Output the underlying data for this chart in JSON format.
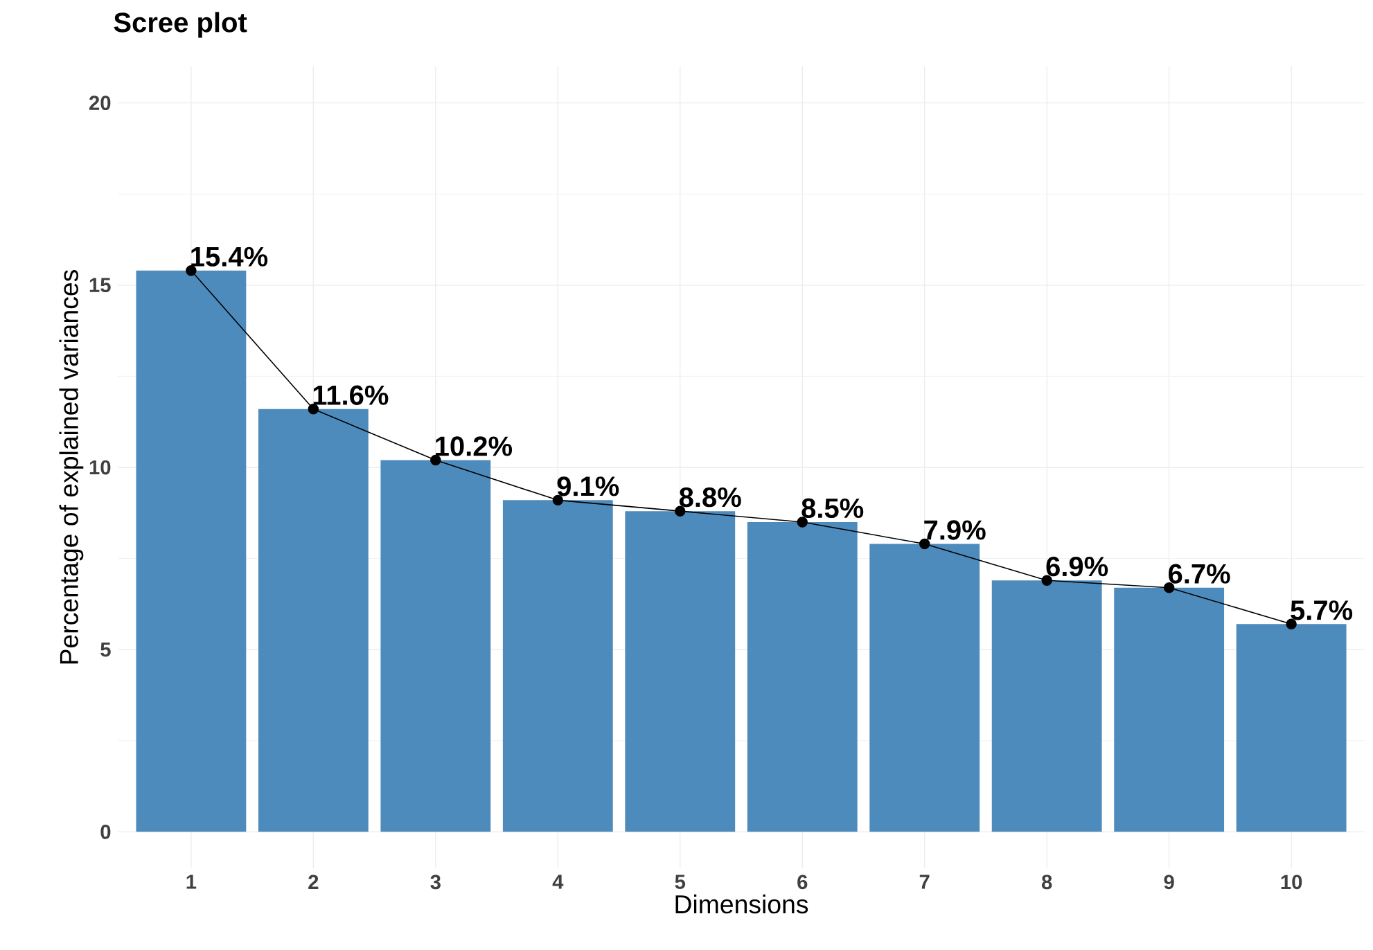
{
  "chart_data": {
    "type": "bar",
    "title": "Scree plot",
    "xlabel": "Dimensions",
    "ylabel": "Percentage of explained variances",
    "categories": [
      "1",
      "2",
      "3",
      "4",
      "5",
      "6",
      "7",
      "8",
      "9",
      "10"
    ],
    "series": [
      {
        "color": "#4e8bbd",
        "values": [
          15.4,
          11.6,
          10.2,
          9.1,
          8.8,
          8.5,
          7.9,
          6.9,
          6.7,
          5.7
        ]
      },
      {
        "type": "line",
        "color": "#000000",
        "marker": "circle",
        "line_style": "solid",
        "values": [
          15.4,
          11.6,
          10.2,
          9.1,
          8.8,
          8.5,
          7.9,
          6.9,
          6.7,
          5.7
        ],
        "value_labels": [
          "15.4%",
          "11.6%",
          "10.2%",
          "9.1%",
          "8.8%",
          "8.5%",
          "7.9%",
          "6.9%",
          "6.7%",
          "5.7%"
        ]
      }
    ],
    "ylim": [
      -1,
      21
    ],
    "yticks": [
      0,
      5,
      10,
      15,
      20
    ],
    "grid": true
  }
}
